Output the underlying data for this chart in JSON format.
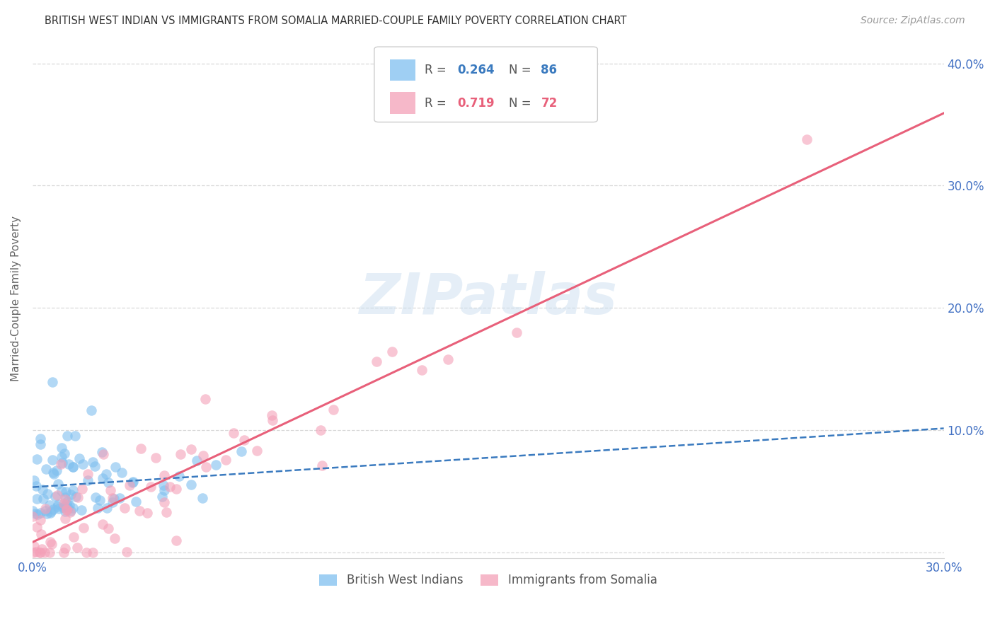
{
  "title": "BRITISH WEST INDIAN VS IMMIGRANTS FROM SOMALIA MARRIED-COUPLE FAMILY POVERTY CORRELATION CHART",
  "source": "Source: ZipAtlas.com",
  "ylabel": "Married-Couple Family Poverty",
  "xlim": [
    0.0,
    0.3
  ],
  "ylim": [
    -0.005,
    0.42
  ],
  "xticks": [
    0.0,
    0.05,
    0.1,
    0.15,
    0.2,
    0.25,
    0.3
  ],
  "yticks": [
    0.0,
    0.1,
    0.2,
    0.3,
    0.4
  ],
  "ytick_labels": [
    "",
    "10.0%",
    "20.0%",
    "30.0%",
    "40.0%"
  ],
  "xtick_labels": [
    "0.0%",
    "",
    "",
    "",
    "",
    "",
    "30.0%"
  ],
  "watermark": "ZIPatlas",
  "legend_labels_bottom": [
    "British West Indians",
    "Immigrants from Somalia"
  ],
  "blue_color": "#7fbfef",
  "pink_color": "#f4a0b8",
  "blue_line_color": "#3a7abf",
  "pink_line_color": "#e8607a",
  "grid_color": "#d8d8d8",
  "tick_label_color": "#4472c4",
  "background_color": "#ffffff",
  "R_blue": 0.264,
  "N_blue": 86,
  "R_pink": 0.719,
  "N_pink": 72
}
